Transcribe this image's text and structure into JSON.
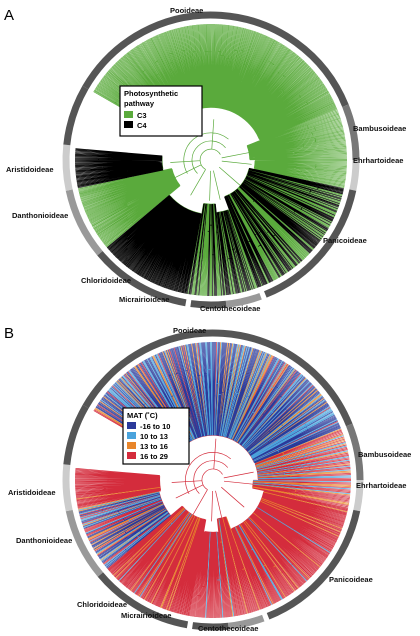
{
  "panels": [
    {
      "letter": "A",
      "legend": {
        "title_line1": "Photosynthetic",
        "title_line2": "pathway",
        "items": [
          {
            "label": "C3",
            "color": "#5aaa3c"
          },
          {
            "label": "C4",
            "color": "#000000"
          }
        ]
      },
      "clades": {
        "pooideae": "Pooideae",
        "bambusoideae": "Bambusoideae",
        "ehrhartoideae": "Ehrhartoideae",
        "panicoideae": "Panicoideae",
        "centothecoideae": "Centothecoideae",
        "micrairioideae": "Micrairioideae",
        "chloridoideae": "Chloridoideae",
        "danthonioideae": "Danthonioideae",
        "aristidoideae": "Aristidoideae"
      }
    },
    {
      "letter": "B",
      "legend": {
        "title_line1": "MAT (˚C)",
        "items": [
          {
            "label": "-16 to 10",
            "color": "#2b3a9a"
          },
          {
            "label": "10 to 13",
            "color": "#4aa3dc"
          },
          {
            "label": "13 to 16",
            "color": "#e8852a"
          },
          {
            "label": "16 to 29",
            "color": "#d42c3c"
          }
        ]
      },
      "clades": {
        "pooideae": "Pooideae",
        "bambusoideae": "Bambusoideae",
        "ehrhartoideae": "Ehrhartoideae",
        "panicoideae": "Panicoideae",
        "centothecoideae": "Centothecoideae",
        "micrairioideae": "Micrairioideae",
        "chloridoideae": "Chloridoideae",
        "danthonioideae": "Danthonioideae",
        "aristidoideae": "Aristidoideae"
      }
    }
  ]
}
